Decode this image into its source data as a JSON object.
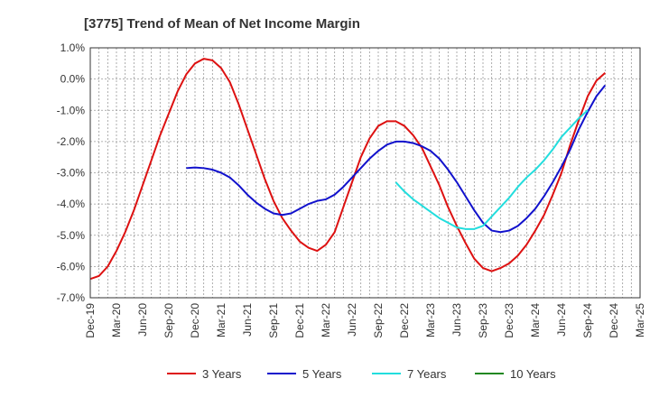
{
  "chart_data": {
    "type": "line",
    "title": "[3775]  Trend of Mean of Net Income Margin",
    "xlabel": "",
    "ylabel": "",
    "ylim": [
      -7.0,
      1.0
    ],
    "y_ticks": [
      "1.0%",
      "0.0%",
      "-1.0%",
      "-2.0%",
      "-3.0%",
      "-4.0%",
      "-5.0%",
      "-6.0%",
      "-7.0%"
    ],
    "y_tick_values": [
      1,
      0,
      -1,
      -2,
      -3,
      -4,
      -5,
      -6,
      -7
    ],
    "x_tick_labels": [
      "Dec-19",
      "Mar-20",
      "Jun-20",
      "Sep-20",
      "Dec-20",
      "Mar-21",
      "Jun-21",
      "Sep-21",
      "Dec-21",
      "Mar-22",
      "Jun-22",
      "Sep-22",
      "Dec-22",
      "Mar-23",
      "Jun-23",
      "Sep-23",
      "Dec-23",
      "Mar-24",
      "Jun-24",
      "Sep-24",
      "Dec-24",
      "Mar-25"
    ],
    "x_months": [
      "2019-12",
      "2020-01",
      "2020-02",
      "2020-03",
      "2020-04",
      "2020-05",
      "2020-06",
      "2020-07",
      "2020-08",
      "2020-09",
      "2020-10",
      "2020-11",
      "2020-12",
      "2021-01",
      "2021-02",
      "2021-03",
      "2021-04",
      "2021-05",
      "2021-06",
      "2021-07",
      "2021-08",
      "2021-09",
      "2021-10",
      "2021-11",
      "2021-12",
      "2022-01",
      "2022-02",
      "2022-03",
      "2022-04",
      "2022-05",
      "2022-06",
      "2022-07",
      "2022-08",
      "2022-09",
      "2022-10",
      "2022-11",
      "2022-12",
      "2023-01",
      "2023-02",
      "2023-03",
      "2023-04",
      "2023-05",
      "2023-06",
      "2023-07",
      "2023-08",
      "2023-09",
      "2023-10",
      "2023-11",
      "2023-12",
      "2024-01",
      "2024-02",
      "2024-03",
      "2024-04",
      "2024-05",
      "2024-06",
      "2024-07",
      "2024-08",
      "2024-09",
      "2024-10",
      "2024-11",
      "2024-12",
      "2025-01",
      "2025-02",
      "2025-03"
    ],
    "grid": true,
    "legend_position": "bottom",
    "series": [
      {
        "name": "3 Years",
        "color": "#dd1111",
        "start": "2019-12",
        "values": [
          -6.4,
          -6.3,
          -6.0,
          -5.5,
          -4.9,
          -4.2,
          -3.4,
          -2.6,
          -1.8,
          -1.1,
          -0.4,
          0.15,
          0.5,
          0.65,
          0.6,
          0.35,
          -0.1,
          -0.8,
          -1.6,
          -2.4,
          -3.2,
          -3.9,
          -4.45,
          -4.85,
          -5.2,
          -5.4,
          -5.5,
          -5.3,
          -4.9,
          -4.1,
          -3.3,
          -2.5,
          -1.9,
          -1.5,
          -1.35,
          -1.35,
          -1.5,
          -1.8,
          -2.2,
          -2.8,
          -3.4,
          -4.1,
          -4.7,
          -5.25,
          -5.75,
          -6.05,
          -6.15,
          -6.05,
          -5.9,
          -5.65,
          -5.3,
          -4.85,
          -4.35,
          -3.7,
          -3.0,
          -2.1,
          -1.3,
          -0.55,
          -0.05,
          0.2
        ]
      },
      {
        "name": "5 Years",
        "color": "#1111cc",
        "start": "2020-11",
        "values": [
          -2.85,
          -2.83,
          -2.85,
          -2.9,
          -3.0,
          -3.15,
          -3.4,
          -3.7,
          -3.95,
          -4.15,
          -4.3,
          -4.35,
          -4.3,
          -4.15,
          -4.0,
          -3.9,
          -3.85,
          -3.7,
          -3.45,
          -3.15,
          -2.85,
          -2.55,
          -2.3,
          -2.1,
          -2.0,
          -2.0,
          -2.05,
          -2.15,
          -2.3,
          -2.55,
          -2.9,
          -3.3,
          -3.75,
          -4.2,
          -4.6,
          -4.85,
          -4.9,
          -4.85,
          -4.7,
          -4.45,
          -4.15,
          -3.75,
          -3.3,
          -2.8,
          -2.25,
          -1.6,
          -1.05,
          -0.55,
          -0.2
        ]
      },
      {
        "name": "7 Years",
        "color": "#22dddd",
        "start": "2022-11",
        "values": [
          -3.3,
          -3.6,
          -3.85,
          -4.05,
          -4.25,
          -4.45,
          -4.6,
          -4.75,
          -4.8,
          -4.8,
          -4.7,
          -4.4,
          -4.1,
          -3.8,
          -3.45,
          -3.15,
          -2.9,
          -2.6,
          -2.25,
          -1.85,
          -1.55,
          -1.25,
          -1.0
        ]
      },
      {
        "name": "10 Years",
        "color": "#228822",
        "start": "2024-12",
        "values": []
      }
    ]
  }
}
